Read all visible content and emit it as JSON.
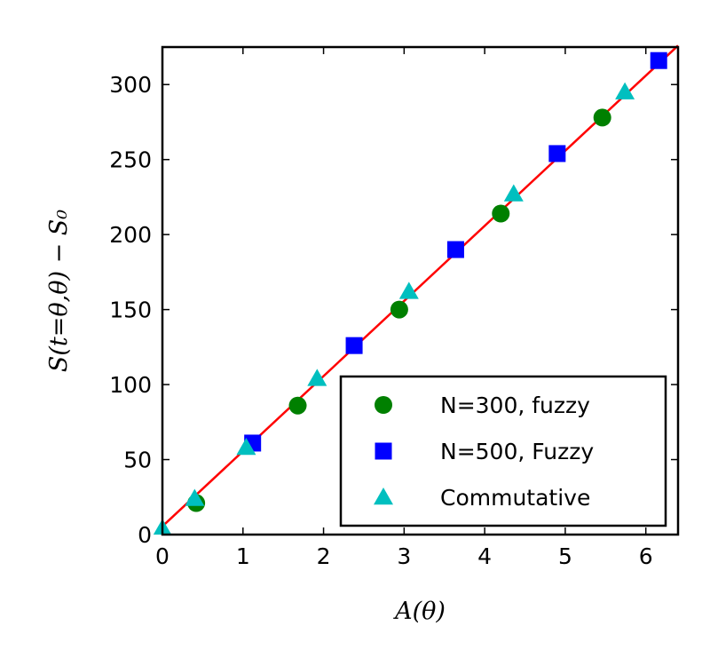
{
  "chart_data": {
    "type": "scatter",
    "xlabel": "A(θ)",
    "ylabel": "S(t=θ,θ) − S₀",
    "xlim": [
      0,
      6.4
    ],
    "ylim": [
      0,
      325
    ],
    "xticks": [
      0,
      1,
      2,
      3,
      4,
      5,
      6
    ],
    "yticks": [
      0,
      50,
      100,
      150,
      200,
      250,
      300
    ],
    "grid": false,
    "legend_position": "lower-right",
    "fit_line": {
      "x": [
        0,
        6.4
      ],
      "y": [
        5.5,
        326
      ],
      "color": "#ff0000"
    },
    "series": [
      {
        "name": "N=300, fuzzy",
        "marker": "circle",
        "color": "#008000",
        "x": [
          0.42,
          1.68,
          2.94,
          4.2,
          5.46
        ],
        "y": [
          21,
          86,
          150,
          214,
          278
        ]
      },
      {
        "name": "N=500, Fuzzy",
        "marker": "square",
        "color": "#0000ff",
        "x": [
          1.12,
          2.38,
          3.64,
          4.9,
          6.16
        ],
        "y": [
          61,
          126,
          190,
          254,
          316
        ]
      },
      {
        "name": "Commutative",
        "marker": "triangle",
        "color": "#00bfbf",
        "x": [
          0.0,
          0.4,
          1.04,
          1.92,
          3.06,
          4.36,
          5.74
        ],
        "y": [
          4,
          24,
          58,
          104,
          162,
          227,
          295
        ]
      }
    ]
  }
}
